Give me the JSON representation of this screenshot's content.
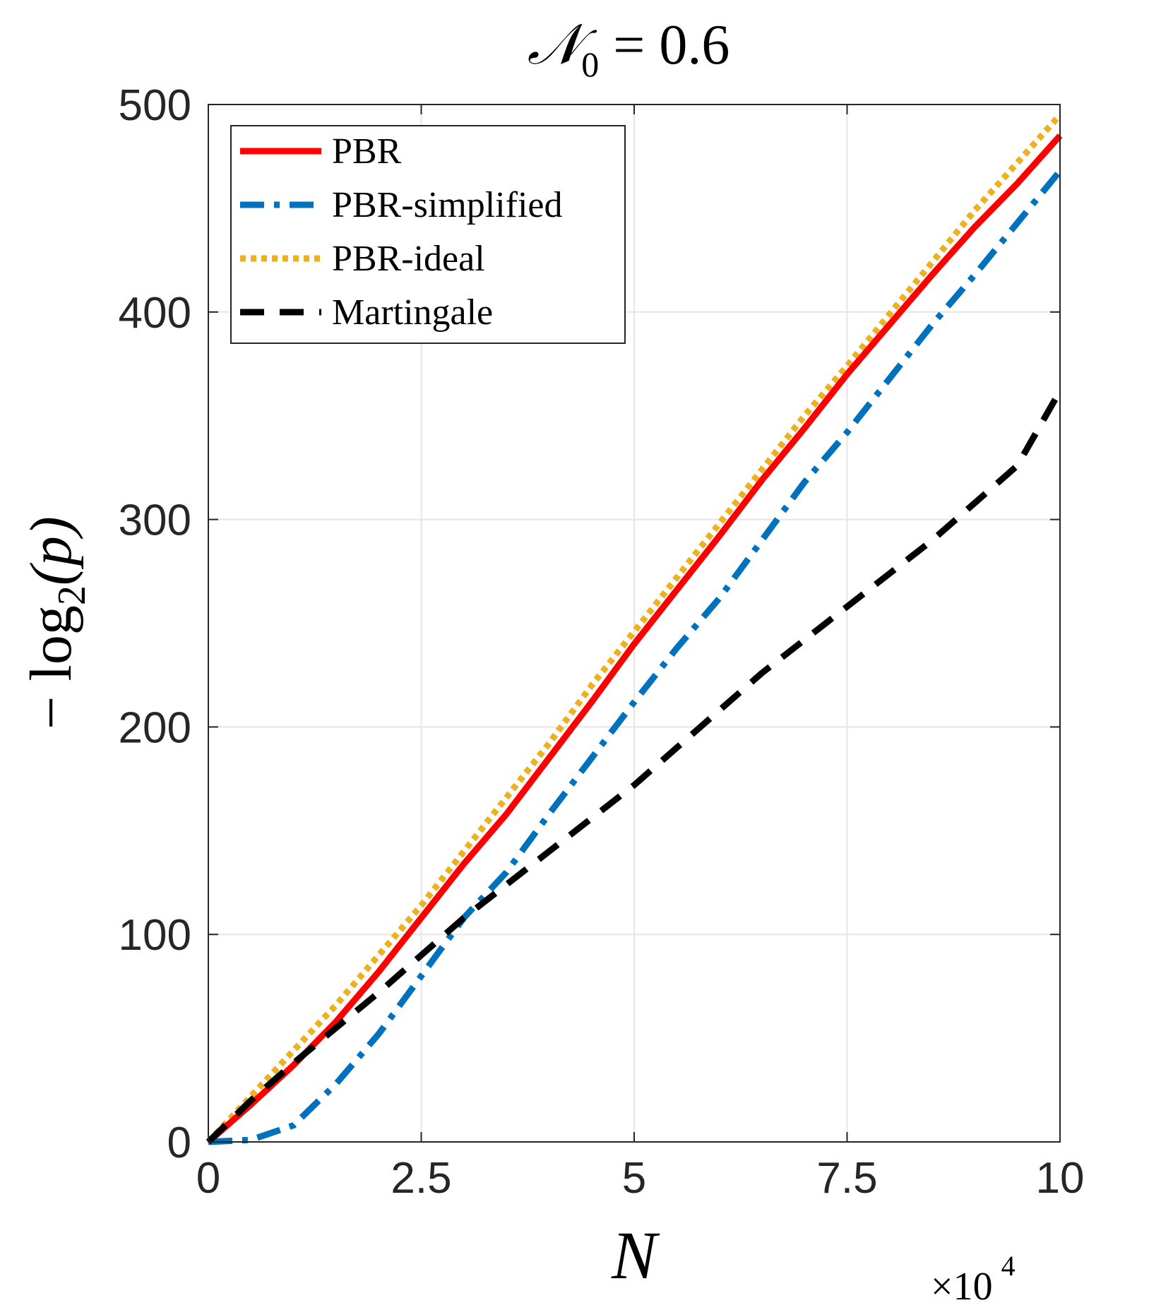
{
  "chart_data": {
    "type": "line",
    "title": "𝒩₀ = 0.6",
    "title_parts": {
      "symbol": "𝒩",
      "subscript": "0",
      "rest": " = 0.6"
    },
    "xlabel": "N",
    "ylabel": "−log₂(p)",
    "ylabel_parts": {
      "prefix": "− log",
      "subscript": "2",
      "suffix": "(p)"
    },
    "x_exponent_label": {
      "base": "×10",
      "power": "4"
    },
    "xlim": [
      0,
      10
    ],
    "ylim": [
      0,
      500
    ],
    "xticks": [
      0,
      2.5,
      5,
      7.5,
      10
    ],
    "xtick_labels": [
      "0",
      "2.5",
      "5",
      "7.5",
      "10"
    ],
    "yticks": [
      0,
      100,
      200,
      300,
      400,
      500
    ],
    "ytick_labels": [
      "0",
      "100",
      "200",
      "300",
      "400",
      "500"
    ],
    "grid": true,
    "legend_position": "top-left",
    "series": [
      {
        "name": "PBR",
        "color": "#ff0000",
        "style": "solid",
        "x": [
          0,
          0.5,
          1,
          1.5,
          2,
          2.5,
          3,
          3.5,
          4,
          4.5,
          5,
          5.5,
          6,
          6.5,
          7,
          7.5,
          8,
          8.5,
          9,
          9.5,
          10
        ],
        "y": [
          0,
          18,
          37,
          58,
          82,
          108,
          134,
          158,
          185,
          212,
          240,
          266,
          292,
          319,
          344,
          370,
          394,
          418,
          441,
          462,
          485
        ]
      },
      {
        "name": "PBR-simplified",
        "color": "#0072bd",
        "style": "dashdot",
        "x": [
          0,
          0.5,
          1,
          1.5,
          2,
          2.5,
          3,
          3.5,
          4,
          4.5,
          5,
          5.5,
          6,
          6.5,
          7,
          7.5,
          8,
          8.5,
          9,
          9.5,
          10
        ],
        "y": [
          0,
          1,
          8,
          28,
          52,
          80,
          108,
          130,
          158,
          185,
          212,
          238,
          262,
          290,
          318,
          342,
          368,
          394,
          418,
          443,
          468
        ]
      },
      {
        "name": "PBR-ideal",
        "color": "#edb120",
        "style": "dotted",
        "x": [
          0,
          0.5,
          1,
          1.5,
          2,
          2.5,
          3,
          3.5,
          4,
          4.5,
          5,
          5.5,
          6,
          6.5,
          7,
          7.5,
          8,
          8.5,
          9,
          9.5,
          10
        ],
        "y": [
          0,
          22,
          44,
          66,
          90,
          114,
          140,
          166,
          192,
          220,
          246,
          272,
          298,
          324,
          350,
          374,
          399,
          424,
          449,
          472,
          495
        ]
      },
      {
        "name": "Martingale",
        "color": "#000000",
        "style": "dashed",
        "x": [
          0,
          0.5,
          1,
          1.5,
          2,
          2.5,
          3,
          3.5,
          4,
          4.5,
          5,
          5.5,
          6,
          6.5,
          7,
          7.5,
          8,
          8.5,
          9,
          9.5,
          10
        ],
        "y": [
          0,
          20,
          38,
          55,
          72,
          90,
          108,
          124,
          140,
          156,
          172,
          190,
          208,
          226,
          242,
          258,
          274,
          290,
          308,
          326,
          362
        ]
      }
    ]
  }
}
